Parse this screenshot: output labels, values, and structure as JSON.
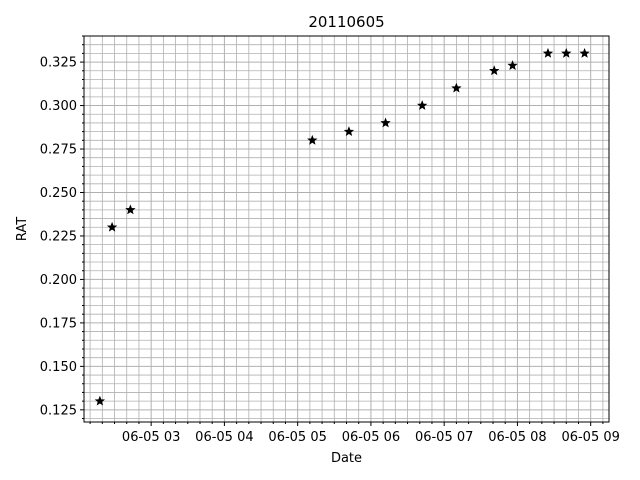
{
  "chart_data": {
    "type": "scatter",
    "title": "20110605",
    "xlabel": "Date",
    "ylabel": "RAT",
    "x_axis": {
      "kind": "datetime",
      "range": [
        "2011-06-05 02:05",
        "2011-06-05 09:15"
      ],
      "tick_labels": [
        {
          "value": "2011-06-05 03:00",
          "label": "06-05 03"
        },
        {
          "value": "2011-06-05 04:00",
          "label": "06-05 04"
        },
        {
          "value": "2011-06-05 05:00",
          "label": "06-05 05"
        },
        {
          "value": "2011-06-05 06:00",
          "label": "06-05 06"
        },
        {
          "value": "2011-06-05 07:00",
          "label": "06-05 07"
        },
        {
          "value": "2011-06-05 08:00",
          "label": "06-05 08"
        },
        {
          "value": "2011-06-05 09:00",
          "label": "06-05 09"
        }
      ]
    },
    "ylim": [
      0.118,
      0.34
    ],
    "y_tick_labels": [
      "0.125",
      "0.150",
      "0.175",
      "0.200",
      "0.225",
      "0.250",
      "0.275",
      "0.300",
      "0.325"
    ],
    "grid": "major and minor",
    "marker": "star",
    "color": "#000000",
    "points": [
      {
        "x": "2011-06-05 02:18",
        "y": 0.13
      },
      {
        "x": "2011-06-05 02:28",
        "y": 0.23
      },
      {
        "x": "2011-06-05 02:43",
        "y": 0.24
      },
      {
        "x": "2011-06-05 05:12",
        "y": 0.28
      },
      {
        "x": "2011-06-05 05:42",
        "y": 0.285
      },
      {
        "x": "2011-06-05 06:12",
        "y": 0.29
      },
      {
        "x": "2011-06-05 06:42",
        "y": 0.3
      },
      {
        "x": "2011-06-05 07:10",
        "y": 0.31
      },
      {
        "x": "2011-06-05 07:41",
        "y": 0.32
      },
      {
        "x": "2011-06-05 07:56",
        "y": 0.323
      },
      {
        "x": "2011-06-05 08:25",
        "y": 0.33
      },
      {
        "x": "2011-06-05 08:40",
        "y": 0.33
      },
      {
        "x": "2011-06-05 08:55",
        "y": 0.33
      }
    ]
  }
}
